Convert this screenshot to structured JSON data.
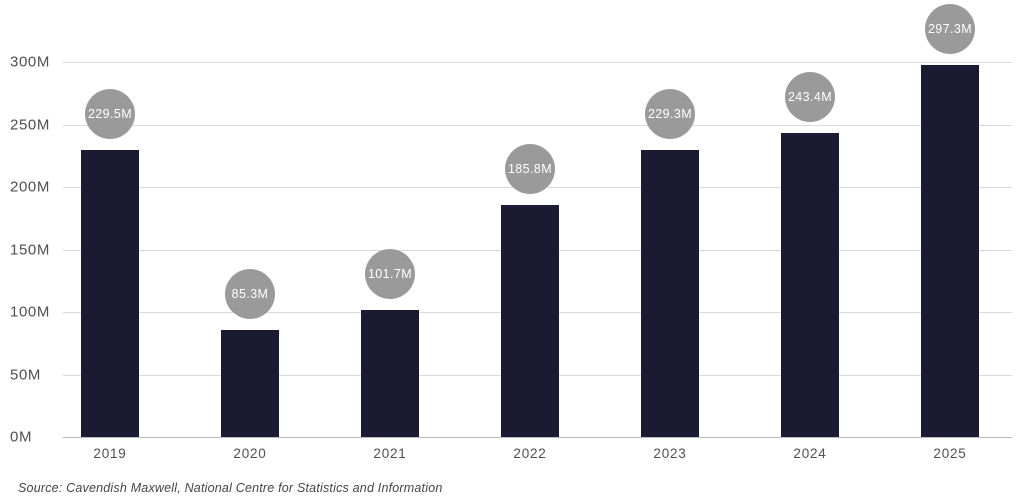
{
  "chart_data": {
    "type": "bar",
    "categories": [
      "2019",
      "2020",
      "2021",
      "2022",
      "2023",
      "2024",
      "2025"
    ],
    "values": [
      229.5,
      85.3,
      101.7,
      185.8,
      229.3,
      243.4,
      297.3
    ],
    "data_labels": [
      "229.5M",
      "85.3M",
      "101.7M",
      "185.8M",
      "229.3M",
      "243.4M",
      "297.3M"
    ],
    "title": "",
    "xlabel": "",
    "ylabel": "",
    "yticks": [
      {
        "value": 0,
        "label": "0M"
      },
      {
        "value": 50,
        "label": "50M"
      },
      {
        "value": 100,
        "label": "100M"
      },
      {
        "value": 150,
        "label": "150M"
      },
      {
        "value": 200,
        "label": "200M"
      },
      {
        "value": 250,
        "label": "250M"
      },
      {
        "value": 300,
        "label": "300M"
      }
    ],
    "ylim": [
      0,
      300
    ],
    "grid": "horizontal",
    "legend": "none",
    "bar_color": "#1a1a33",
    "label_bubble_color": "#9a9a9a",
    "label_text_color": "#ffffff",
    "source": "Source: Cavendish Maxwell, National Centre for Statistics and Information"
  }
}
